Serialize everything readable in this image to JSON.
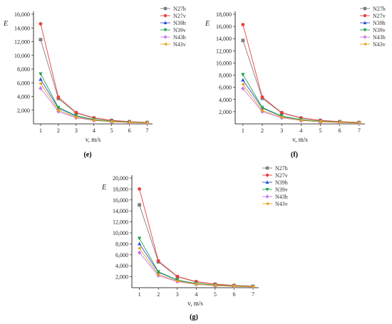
{
  "colors": {
    "N27h": "#7f7f7f",
    "N27v": "#e8403a",
    "N39h": "#2f52d8",
    "N39v": "#1aa34a",
    "N43h": "#c77be8",
    "N43v": "#e8a21a"
  },
  "chart_data": [
    {
      "type": "line",
      "panel": "(e)",
      "xlabel": "v, m/s",
      "ylabel": "E",
      "x": [
        1,
        2,
        3,
        4,
        5,
        6,
        7
      ],
      "xlim": [
        0.6,
        7.3
      ],
      "ylim": [
        0,
        16000
      ],
      "yticks": [
        2000,
        4000,
        6000,
        8000,
        10000,
        12000,
        14000,
        16000
      ],
      "ytick_labels": [
        "2,000",
        "4,000",
        "6,000",
        "8,000",
        "10,000",
        "12,000",
        "14,000",
        "16,000"
      ],
      "legend_position": "top-right",
      "series": [
        {
          "name": "N27h",
          "marker": "square",
          "values": [
            12300,
            3700,
            1600,
            850,
            500,
            320,
            200
          ]
        },
        {
          "name": "N27v",
          "marker": "circle",
          "values": [
            14600,
            3900,
            1650,
            880,
            520,
            330,
            210
          ]
        },
        {
          "name": "N39h",
          "marker": "triangle-up",
          "values": [
            6500,
            2300,
            1150,
            620,
            380,
            250,
            160
          ]
        },
        {
          "name": "N39v",
          "marker": "triangle-down",
          "values": [
            7300,
            2400,
            1200,
            650,
            400,
            260,
            170
          ]
        },
        {
          "name": "N43h",
          "marker": "diamond",
          "values": [
            5200,
            1800,
            900,
            500,
            300,
            200,
            130
          ]
        },
        {
          "name": "N43v",
          "marker": "triangle-left",
          "values": [
            5900,
            2000,
            1000,
            550,
            330,
            220,
            140
          ]
        }
      ]
    },
    {
      "type": "line",
      "panel": "(f)",
      "xlabel": "v, m/s",
      "ylabel": "E",
      "x": [
        1,
        2,
        3,
        4,
        5,
        6,
        7
      ],
      "xlim": [
        0.6,
        7.3
      ],
      "ylim": [
        0,
        18000
      ],
      "yticks": [
        2000,
        4000,
        6000,
        8000,
        10000,
        12000,
        14000,
        16000,
        18000
      ],
      "ytick_labels": [
        "2,000",
        "4,000",
        "6,000",
        "8,000",
        "10,000",
        "12,000",
        "14,000",
        "16,000",
        "18,000"
      ],
      "legend_position": "top-right",
      "series": [
        {
          "name": "N27h",
          "marker": "square",
          "values": [
            13700,
            4200,
            1800,
            950,
            560,
            360,
            230
          ]
        },
        {
          "name": "N27v",
          "marker": "circle",
          "values": [
            16300,
            4400,
            1850,
            980,
            580,
            370,
            240
          ]
        },
        {
          "name": "N39h",
          "marker": "triangle-up",
          "values": [
            7200,
            2600,
            1250,
            680,
            420,
            270,
            170
          ]
        },
        {
          "name": "N39v",
          "marker": "triangle-down",
          "values": [
            8100,
            2700,
            1300,
            710,
            440,
            280,
            180
          ]
        },
        {
          "name": "N43h",
          "marker": "diamond",
          "values": [
            5800,
            2000,
            1000,
            560,
            340,
            220,
            140
          ]
        },
        {
          "name": "N43v",
          "marker": "triangle-left",
          "values": [
            6500,
            2200,
            1100,
            600,
            370,
            240,
            150
          ]
        }
      ]
    },
    {
      "type": "line",
      "panel": "(g)",
      "xlabel": "v, m/s",
      "ylabel": "E",
      "x": [
        1,
        2,
        3,
        4,
        5,
        6,
        7
      ],
      "xlim": [
        0.6,
        7.3
      ],
      "ylim": [
        0,
        20000
      ],
      "yticks": [
        2000,
        4000,
        6000,
        8000,
        10000,
        12000,
        14000,
        16000,
        18000,
        20000
      ],
      "ytick_labels": [
        "2,000",
        "4,000",
        "6,000",
        "8,000",
        "10,000",
        "12,000",
        "14,000",
        "16,000",
        "18,000",
        "20,000"
      ],
      "legend_position": "top-right",
      "series": [
        {
          "name": "N27h",
          "marker": "square",
          "values": [
            15100,
            4700,
            2000,
            1050,
            620,
            400,
            250
          ]
        },
        {
          "name": "N27v",
          "marker": "circle",
          "values": [
            18000,
            4900,
            2050,
            1100,
            650,
            410,
            260
          ]
        },
        {
          "name": "N39h",
          "marker": "triangle-up",
          "values": [
            8000,
            2800,
            1350,
            740,
            460,
            300,
            190
          ]
        },
        {
          "name": "N39v",
          "marker": "triangle-down",
          "values": [
            9000,
            2900,
            1400,
            770,
            480,
            310,
            200
          ]
        },
        {
          "name": "N43h",
          "marker": "diamond",
          "values": [
            6400,
            2200,
            1100,
            610,
            370,
            240,
            150
          ]
        },
        {
          "name": "N43v",
          "marker": "triangle-left",
          "values": [
            7200,
            2400,
            1200,
            660,
            400,
            260,
            160
          ]
        }
      ]
    }
  ]
}
